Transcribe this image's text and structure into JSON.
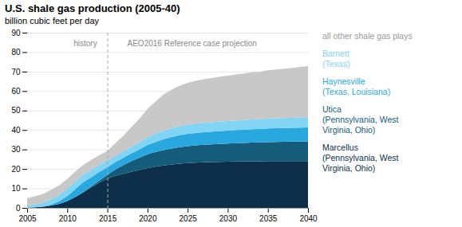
{
  "chart_data": {
    "type": "area",
    "stacked": true,
    "title": "U.S. shale gas production (2005-40)",
    "subtitle": "billion cubic feet per day",
    "x": [
      2005,
      2006,
      2007,
      2008,
      2009,
      2010,
      2011,
      2012,
      2013,
      2014,
      2015,
      2016,
      2017,
      2018,
      2019,
      2020,
      2021,
      2022,
      2023,
      2024,
      2025,
      2026,
      2027,
      2028,
      2029,
      2030,
      2031,
      2032,
      2033,
      2034,
      2035,
      2036,
      2037,
      2038,
      2039,
      2040
    ],
    "series": [
      {
        "name": "Marcellus\n(Pennsylvania, West\nVirginia, Ohio)",
        "color": "#0d2f4a",
        "values": [
          0.1,
          0.3,
          0.6,
          1.2,
          2.0,
          3.5,
          5.5,
          8.0,
          10.5,
          13.0,
          15.0,
          16.5,
          17.5,
          18.5,
          19.5,
          20.5,
          21.2,
          21.8,
          22.3,
          22.7,
          23.0,
          23.2,
          23.4,
          23.5,
          23.6,
          23.7,
          23.8,
          23.8,
          23.9,
          23.9,
          24.0,
          24.0,
          24.0,
          24.0,
          24.0,
          24.0
        ]
      },
      {
        "name": "Utica\n(Pennsylvania, West\nVirginia, Ohio)",
        "color": "#155c7a",
        "values": [
          0.0,
          0.0,
          0.0,
          0.0,
          0.0,
          0.0,
          0.1,
          0.2,
          0.5,
          1.0,
          2.0,
          3.2,
          4.5,
          5.5,
          6.3,
          7.0,
          7.5,
          7.9,
          8.2,
          8.5,
          8.7,
          8.9,
          9.0,
          9.1,
          9.2,
          9.3,
          9.4,
          9.5,
          9.6,
          9.7,
          9.8,
          9.9,
          10.0,
          10.1,
          10.1,
          10.2
        ]
      },
      {
        "name": "Haynesville\n(Texas, Louisiana)",
        "color": "#29a8e0",
        "values": [
          0.0,
          0.0,
          0.1,
          0.5,
          1.5,
          2.5,
          4.0,
          5.0,
          4.8,
          4.5,
          4.0,
          3.8,
          3.8,
          4.0,
          4.3,
          4.8,
          5.2,
          5.6,
          5.9,
          6.1,
          6.3,
          6.4,
          6.5,
          6.6,
          6.7,
          6.7,
          6.8,
          6.8,
          6.9,
          6.9,
          7.0,
          7.0,
          7.0,
          7.0,
          7.1,
          7.1
        ]
      },
      {
        "name": "Barnett\n(Texas)",
        "color": "#82d4f5",
        "values": [
          1.0,
          1.5,
          2.0,
          2.8,
          3.2,
          3.8,
          4.0,
          4.0,
          3.8,
          3.6,
          3.3,
          3.2,
          3.3,
          3.5,
          3.7,
          4.0,
          4.2,
          4.4,
          4.5,
          4.6,
          4.7,
          4.8,
          4.8,
          4.8,
          4.9,
          4.9,
          4.9,
          5.0,
          5.0,
          5.0,
          5.1,
          5.1,
          5.1,
          5.1,
          5.2,
          5.2
        ]
      },
      {
        "name": "all other shale gas plays",
        "color": "#c8c8c8",
        "values": [
          3.9,
          4.2,
          4.5,
          4.8,
          5.0,
          5.0,
          5.0,
          4.9,
          5.0,
          5.0,
          5.0,
          6.5,
          8.0,
          10.0,
          12.0,
          14.5,
          16.5,
          18.5,
          19.8,
          20.8,
          21.5,
          22.0,
          22.4,
          22.7,
          23.0,
          23.3,
          23.6,
          23.9,
          24.2,
          24.5,
          24.8,
          25.1,
          25.4,
          25.7,
          26.0,
          26.3
        ]
      }
    ],
    "xlim": [
      2005,
      2040
    ],
    "xticks": [
      2005,
      2010,
      2015,
      2020,
      2025,
      2030,
      2035,
      2040
    ],
    "ylim": [
      0,
      90
    ],
    "yticks": [
      0,
      10,
      20,
      30,
      40,
      50,
      60,
      70,
      80,
      90
    ],
    "grid": true,
    "reference_lines": [
      {
        "x": 2015,
        "line_style": "dashed"
      }
    ],
    "annotations": [
      {
        "text": "history",
        "x": 2012.2,
        "y": 86
      },
      {
        "text": "AEO2016 Reference case projection",
        "x": 2025.5,
        "y": 86
      }
    ]
  }
}
